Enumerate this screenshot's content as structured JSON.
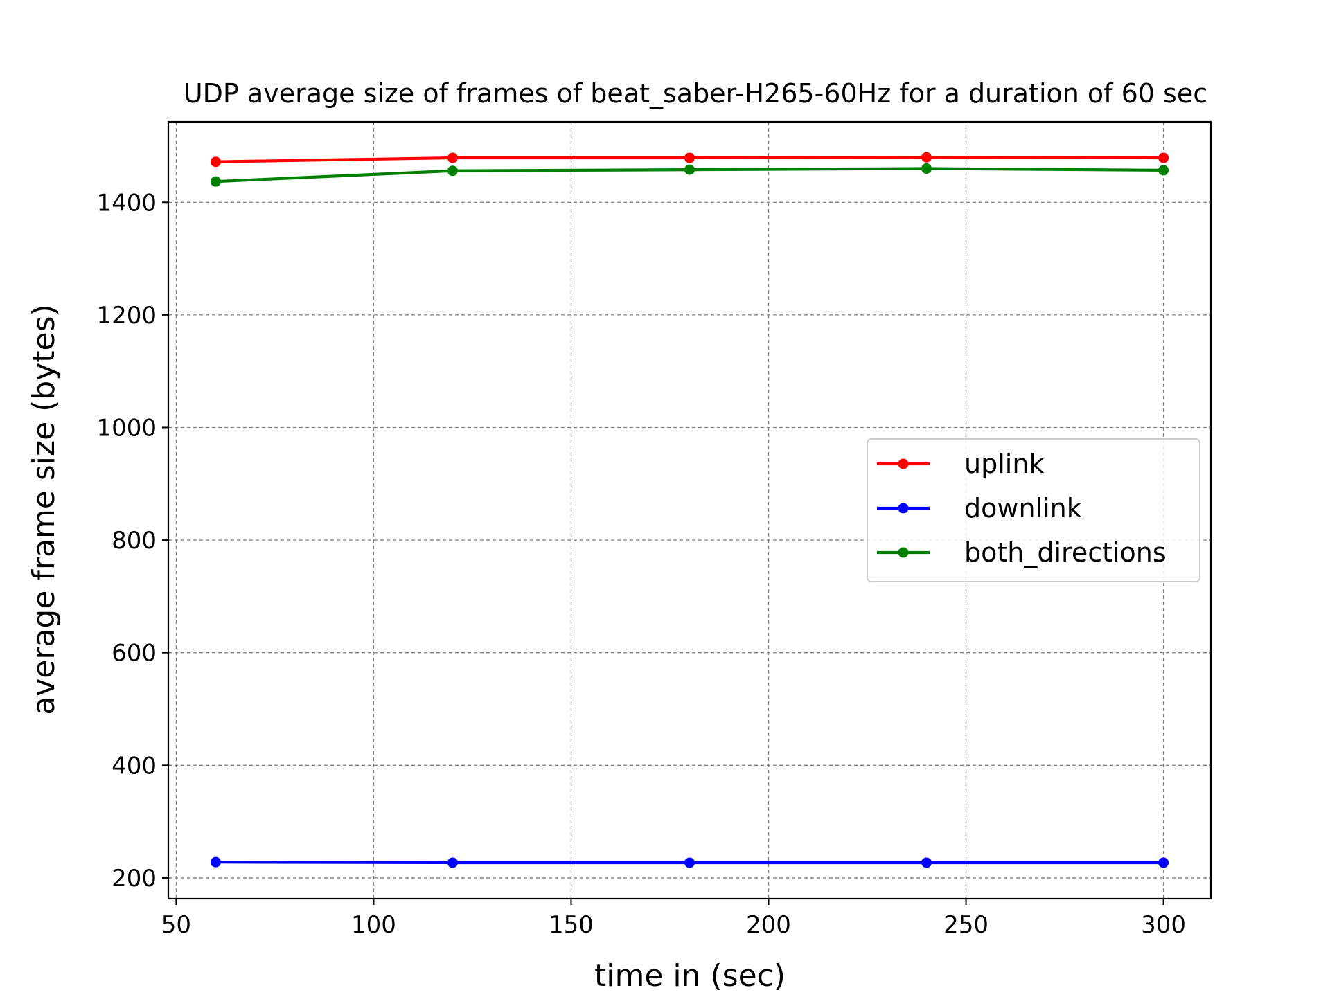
{
  "chart_data": {
    "type": "line",
    "title": "UDP average size of frames of beat_saber-H265-60Hz for a duration of 60 sec",
    "xlabel": "time in (sec)",
    "ylabel": "average frame size (bytes)",
    "xlim": [
      48,
      312
    ],
    "ylim": [
      163,
      1543
    ],
    "xticks": [
      50,
      100,
      150,
      200,
      250,
      300
    ],
    "yticks": [
      200,
      400,
      600,
      800,
      1000,
      1200,
      1400
    ],
    "grid": true,
    "legend_position": "center-right",
    "x": [
      60,
      120,
      180,
      240,
      300
    ],
    "series": [
      {
        "name": "uplink",
        "color": "#ff0000",
        "values": [
          1472,
          1479,
          1479,
          1480,
          1479
        ]
      },
      {
        "name": "downlink",
        "color": "#0000ff",
        "values": [
          228,
          227,
          227,
          227,
          227
        ]
      },
      {
        "name": "both_directions",
        "color": "#008000",
        "values": [
          1437,
          1456,
          1458,
          1460,
          1457
        ]
      }
    ]
  }
}
